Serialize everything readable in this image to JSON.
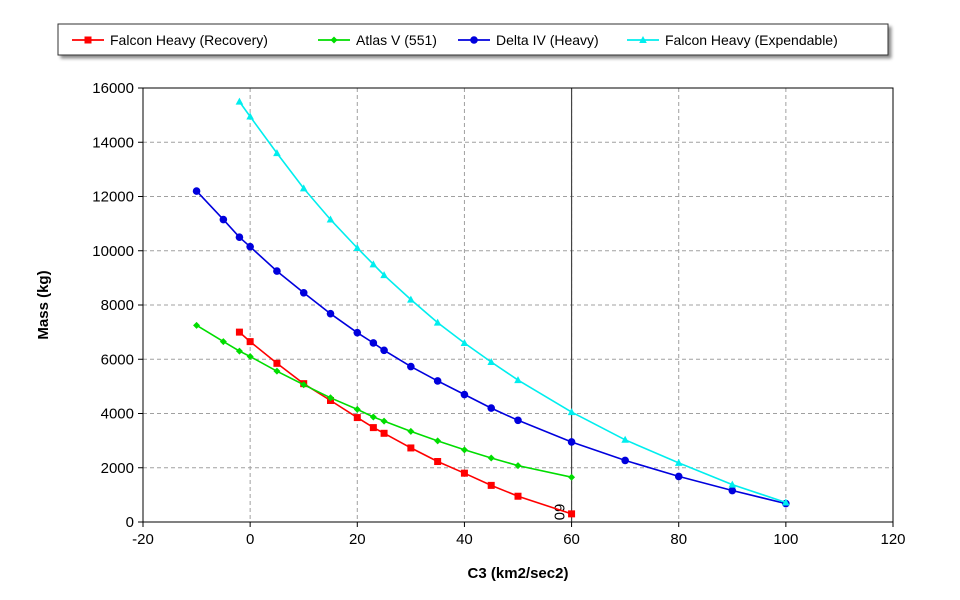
{
  "chart_data": {
    "type": "line",
    "title": "",
    "xlabel": "C3 (km2/sec2)",
    "ylabel": "Mass (kg)",
    "xlim": [
      -20,
      120
    ],
    "ylim": [
      0,
      16000
    ],
    "x_ticks": [
      -20,
      0,
      20,
      40,
      60,
      80,
      100,
      120
    ],
    "y_ticks": [
      0,
      2000,
      4000,
      6000,
      8000,
      10000,
      12000,
      14000,
      16000
    ],
    "grid": true,
    "legend_position": "top",
    "cursor_line": {
      "x": 60,
      "label": "60"
    },
    "series": [
      {
        "name": "Falcon Heavy (Recovery)",
        "color": "#ff0000",
        "marker": "square",
        "x": [
          -2,
          0,
          5,
          10,
          15,
          20,
          23,
          25,
          30,
          35,
          40,
          45,
          50,
          60
        ],
        "values": [
          7000,
          6650,
          5850,
          5100,
          4480,
          3850,
          3480,
          3270,
          2730,
          2230,
          1800,
          1350,
          950,
          300
        ]
      },
      {
        "name": "Atlas V (551)",
        "color": "#00dd00",
        "marker": "diamond",
        "x": [
          -10,
          -5,
          -2,
          0,
          5,
          10,
          15,
          20,
          23,
          25,
          30,
          35,
          40,
          45,
          50,
          60
        ],
        "values": [
          7250,
          6650,
          6300,
          6100,
          5560,
          5060,
          4580,
          4150,
          3870,
          3720,
          3340,
          2990,
          2660,
          2360,
          2080,
          1650
        ]
      },
      {
        "name": "Delta IV (Heavy)",
        "color": "#0000dd",
        "marker": "circle",
        "x": [
          -10,
          -5,
          -2,
          0,
          5,
          10,
          15,
          20,
          23,
          25,
          30,
          35,
          40,
          45,
          50,
          60,
          70,
          80,
          90,
          100
        ],
        "values": [
          12200,
          11150,
          10500,
          10150,
          9250,
          8450,
          7680,
          6980,
          6600,
          6330,
          5730,
          5200,
          4700,
          4200,
          3750,
          2950,
          2270,
          1680,
          1160,
          680
        ]
      },
      {
        "name": "Falcon Heavy (Expendable)",
        "color": "#00eeee",
        "marker": "triangle",
        "x": [
          -2,
          0,
          5,
          10,
          15,
          20,
          23,
          25,
          30,
          35,
          40,
          45,
          50,
          60,
          70,
          80,
          90,
          100
        ],
        "values": [
          15500,
          14950,
          13600,
          12300,
          11150,
          10100,
          9500,
          9100,
          8200,
          7350,
          6600,
          5900,
          5230,
          4050,
          3030,
          2180,
          1380,
          720
        ]
      }
    ]
  }
}
